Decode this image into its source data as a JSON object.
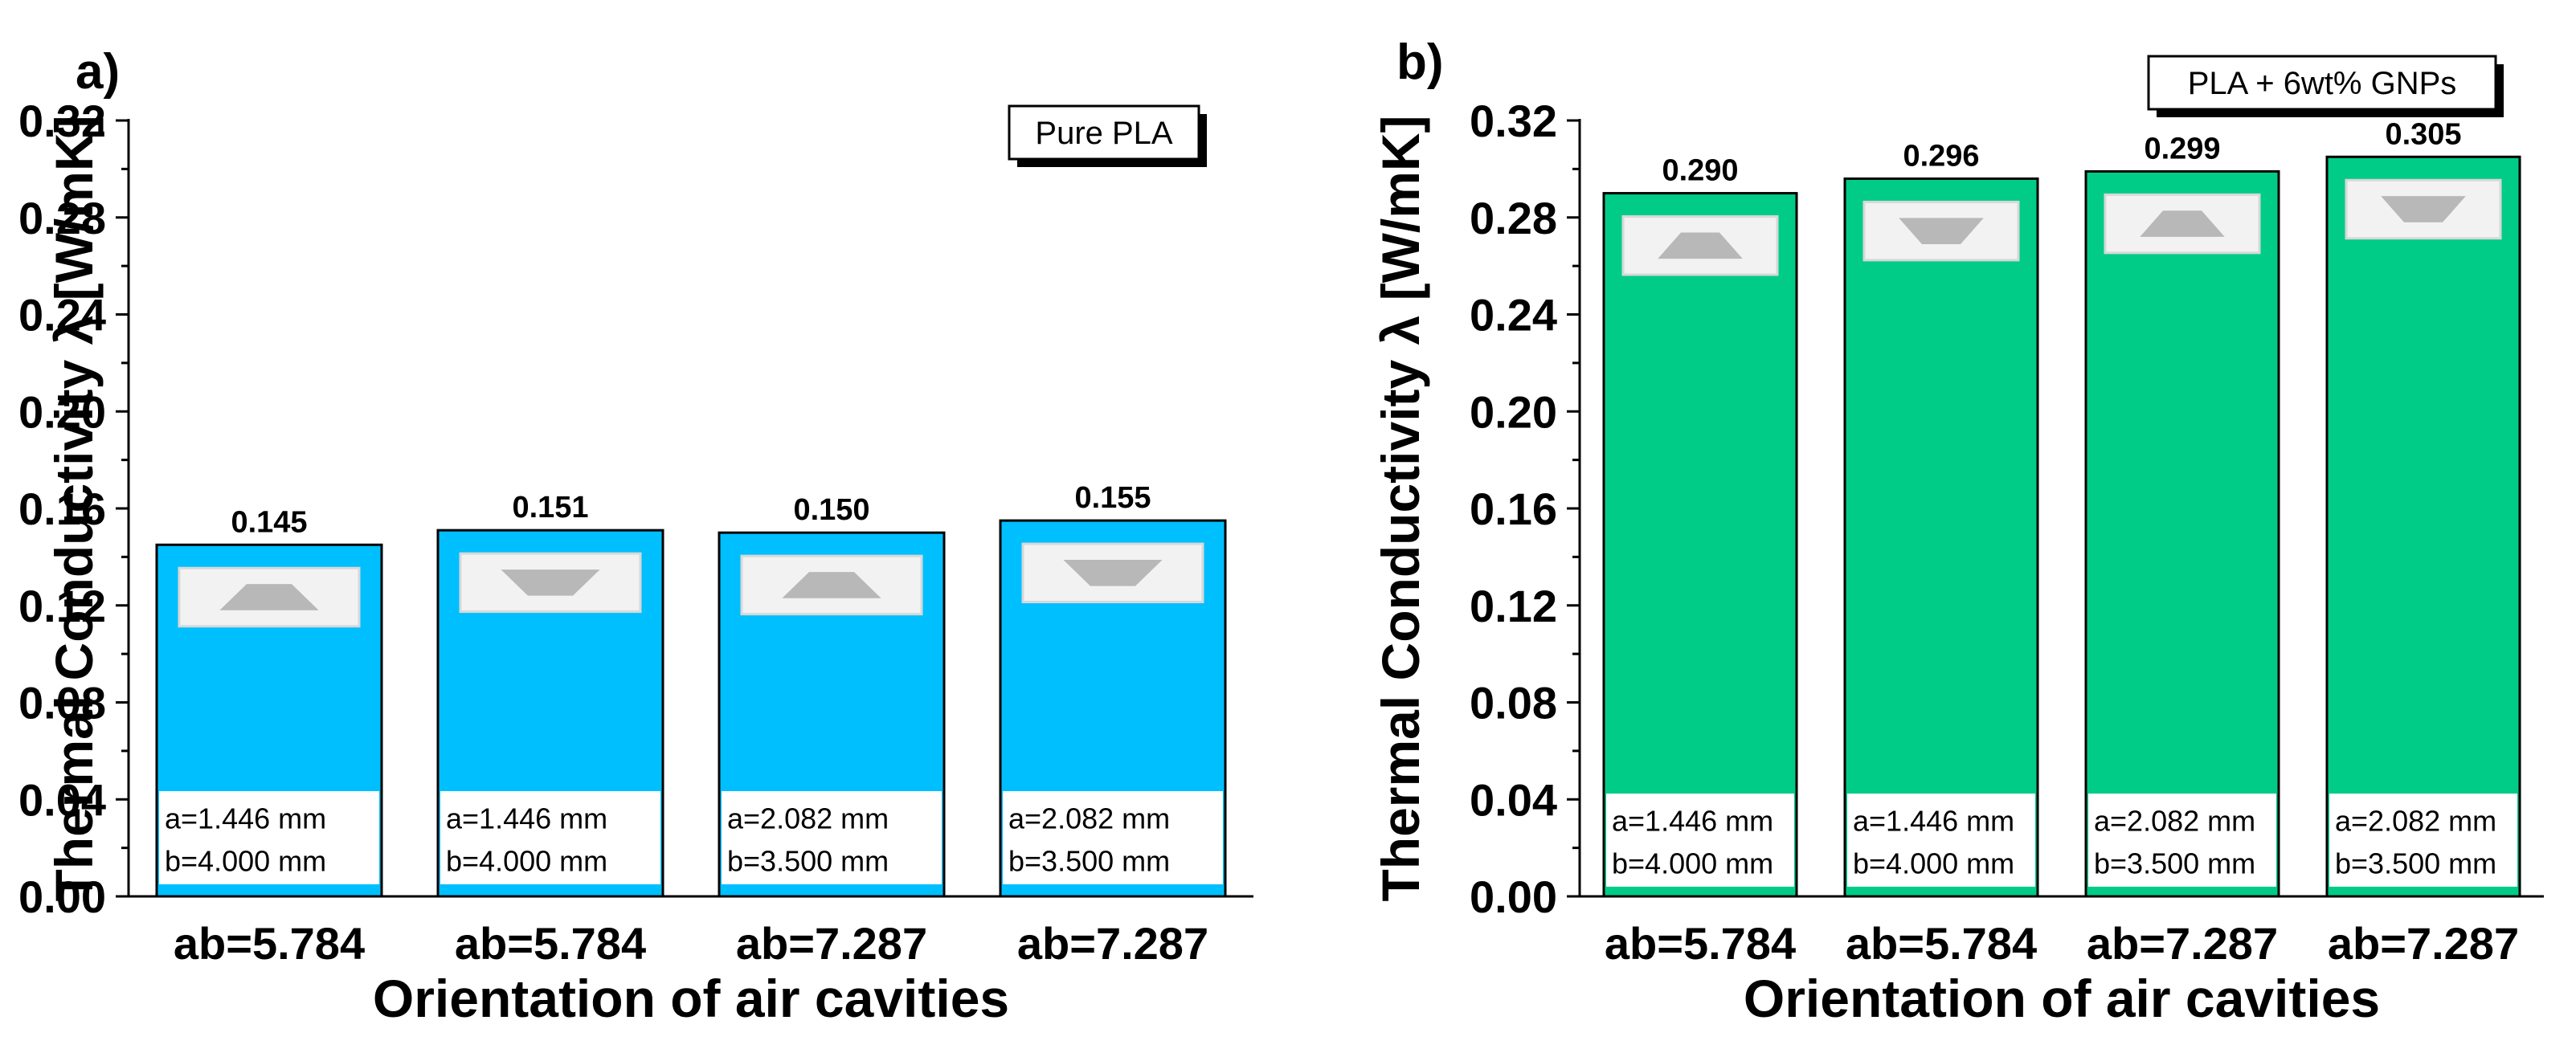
{
  "chart_data": [
    {
      "type": "bar",
      "panel_label": "a)",
      "legend_text": "Pure PLA",
      "title": "",
      "xlabel": "Orientation of air cavities",
      "ylabel": "Thermal Conductivity λ [W/mK]",
      "categories": [
        "ab=5.784",
        "ab=5.784",
        "ab=7.287",
        "ab=7.287"
      ],
      "values": [
        0.145,
        0.151,
        0.15,
        0.155
      ],
      "value_labels": [
        "0.145",
        "0.151",
        "0.150",
        "0.155"
      ],
      "ylim": [
        0,
        0.32
      ],
      "yticks": [
        0.0,
        0.04,
        0.08,
        0.12,
        0.16,
        0.2,
        0.24,
        0.28,
        0.32
      ],
      "ytick_labels": [
        "0.00",
        "0.04",
        "0.08",
        "0.12",
        "0.16",
        "0.20",
        "0.24",
        "0.28",
        "0.32"
      ],
      "bar_color": "#00bfff",
      "bottom_strip_value": 0.005,
      "dims": [
        {
          "a": "a=1.446 mm",
          "b": "b=4.000 mm"
        },
        {
          "a": "a=1.446 mm",
          "b": "b=4.000 mm"
        },
        {
          "a": "a=2.082 mm",
          "b": "b=3.500 mm"
        },
        {
          "a": "a=2.082 mm",
          "b": "b=3.500 mm"
        }
      ],
      "cavity_shapes": [
        "trapezoid-up",
        "trapezoid-down",
        "trapezoid-up",
        "trapezoid-down"
      ]
    },
    {
      "type": "bar",
      "panel_label": "b)",
      "legend_text": "PLA + 6wt% GNPs",
      "title": "",
      "xlabel": "Orientation of air cavities",
      "ylabel": "Thermal Conductivity λ [W/mK]",
      "categories": [
        "ab=5.784",
        "ab=5.784",
        "ab=7.287",
        "ab=7.287"
      ],
      "values": [
        0.29,
        0.296,
        0.299,
        0.305
      ],
      "value_labels": [
        "0.290",
        "0.296",
        "0.299",
        "0.305"
      ],
      "ylim": [
        0,
        0.32
      ],
      "yticks": [
        0.0,
        0.04,
        0.08,
        0.12,
        0.16,
        0.2,
        0.24,
        0.28,
        0.32
      ],
      "ytick_labels": [
        "0.00",
        "0.04",
        "0.08",
        "0.12",
        "0.16",
        "0.20",
        "0.24",
        "0.28",
        "0.32"
      ],
      "bar_color": "#00cc88",
      "bottom_strip_value": 0.004,
      "dims": [
        {
          "a": "a=1.446 mm",
          "b": "b=4.000 mm"
        },
        {
          "a": "a=1.446 mm",
          "b": "b=4.000 mm"
        },
        {
          "a": "a=2.082 mm",
          "b": "b=3.500 mm"
        },
        {
          "a": "a=2.082 mm",
          "b": "b=3.500 mm"
        }
      ],
      "cavity_shapes": [
        "trapezoid-up",
        "trapezoid-down",
        "trapezoid-up",
        "trapezoid-down"
      ]
    }
  ]
}
